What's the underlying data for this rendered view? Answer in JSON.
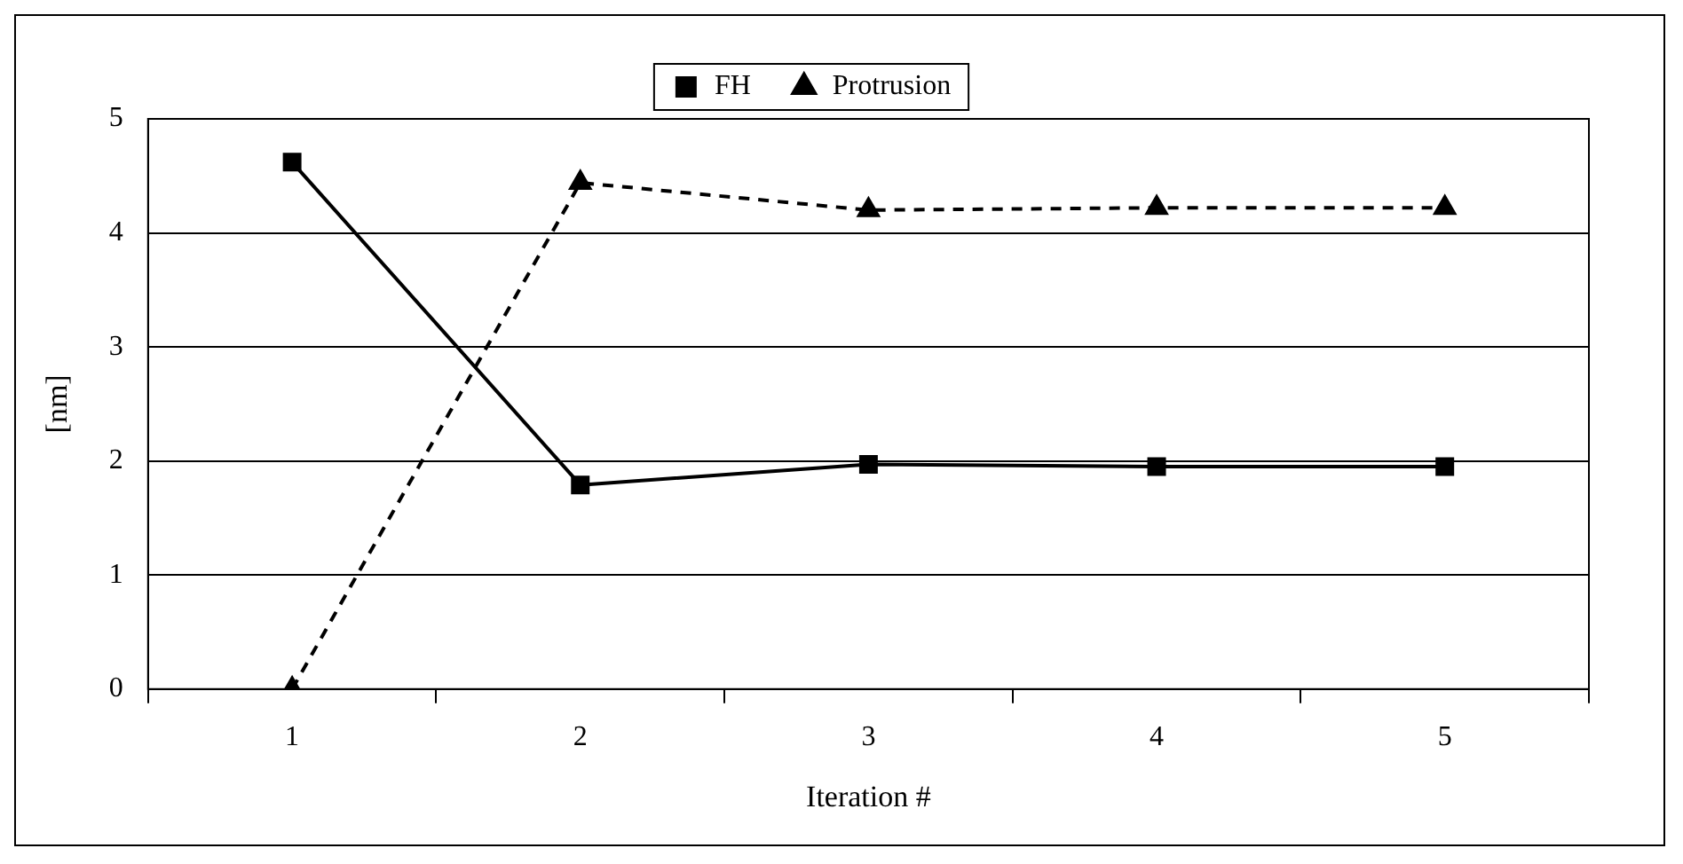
{
  "chart_data": {
    "type": "line",
    "xlabel": "Iteration #",
    "ylabel": "[nm]",
    "categories": [
      "1",
      "2",
      "3",
      "4",
      "5"
    ],
    "series": [
      {
        "name": "FH",
        "color": "#000000",
        "values": [
          4.62,
          1.79,
          1.97,
          1.95,
          1.95
        ],
        "marker": "square",
        "line_style": "solid"
      },
      {
        "name": "Protrusion",
        "color": "#000000",
        "values": [
          0,
          4.44,
          4.2,
          4.22,
          4.22
        ],
        "marker": "triangle",
        "line_style": "dashed"
      }
    ],
    "ylim": [
      0,
      5
    ],
    "yticks": [
      0,
      1,
      2,
      3,
      4,
      5
    ],
    "grid": "y",
    "legend": "top"
  }
}
